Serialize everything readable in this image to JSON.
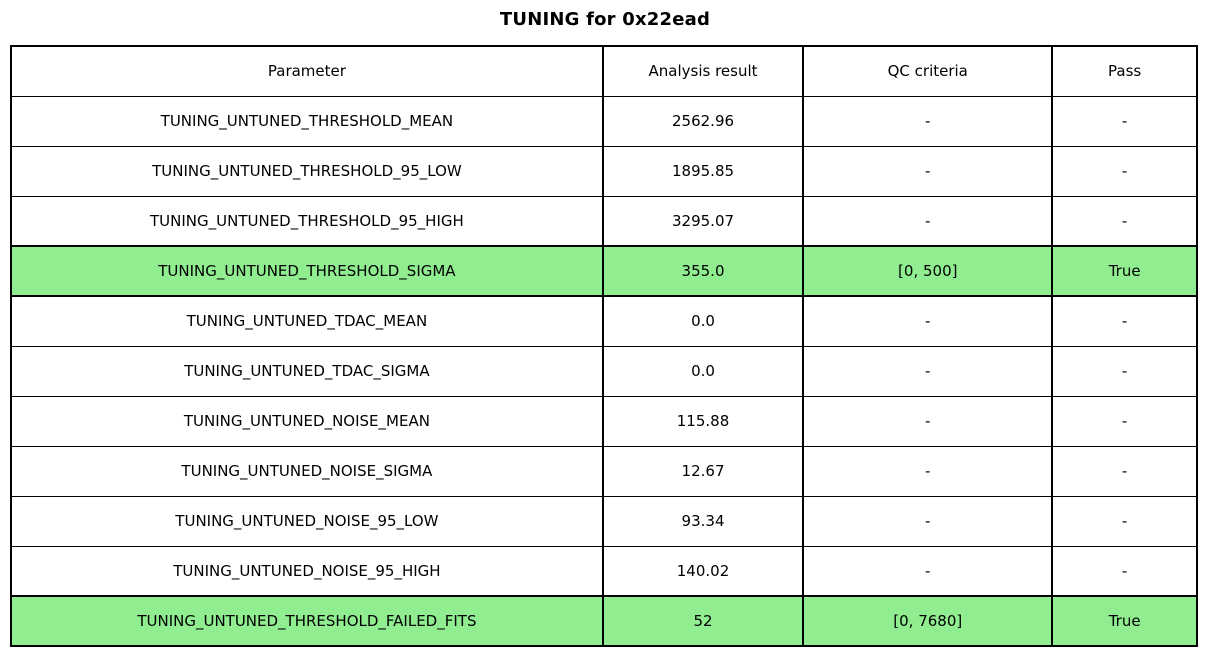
{
  "chart_data": {
    "type": "table",
    "title": "TUNING for 0x22ead",
    "columns": [
      "Parameter",
      "Analysis result",
      "QC criteria",
      "Pass"
    ],
    "rows": [
      [
        "TUNING_UNTUNED_THRESHOLD_MEAN",
        "2562.96",
        "-",
        "-"
      ],
      [
        "TUNING_UNTUNED_THRESHOLD_95_LOW",
        "1895.85",
        "-",
        "-"
      ],
      [
        "TUNING_UNTUNED_THRESHOLD_95_HIGH",
        "3295.07",
        "-",
        "-"
      ],
      [
        "TUNING_UNTUNED_THRESHOLD_SIGMA",
        "355.0",
        "[0, 500]",
        "True"
      ],
      [
        "TUNING_UNTUNED_TDAC_MEAN",
        "0.0",
        "-",
        "-"
      ],
      [
        "TUNING_UNTUNED_TDAC_SIGMA",
        "0.0",
        "-",
        "-"
      ],
      [
        "TUNING_UNTUNED_NOISE_MEAN",
        "115.88",
        "-",
        "-"
      ],
      [
        "TUNING_UNTUNED_NOISE_SIGMA",
        "12.67",
        "-",
        "-"
      ],
      [
        "TUNING_UNTUNED_NOISE_95_LOW",
        "93.34",
        "-",
        "-"
      ],
      [
        "TUNING_UNTUNED_NOISE_95_HIGH",
        "140.02",
        "-",
        "-"
      ],
      [
        "TUNING_UNTUNED_THRESHOLD_FAILED_FITS",
        "52",
        "[0, 7680]",
        "True"
      ]
    ],
    "highlighted_rows": [
      3,
      10
    ],
    "highlight_color": "#90ee90",
    "layout": {
      "grid": true,
      "legend": "none"
    }
  },
  "colors": {
    "highlight": "#90ee90",
    "border": "#000000",
    "background": "#ffffff",
    "text": "#000000"
  }
}
